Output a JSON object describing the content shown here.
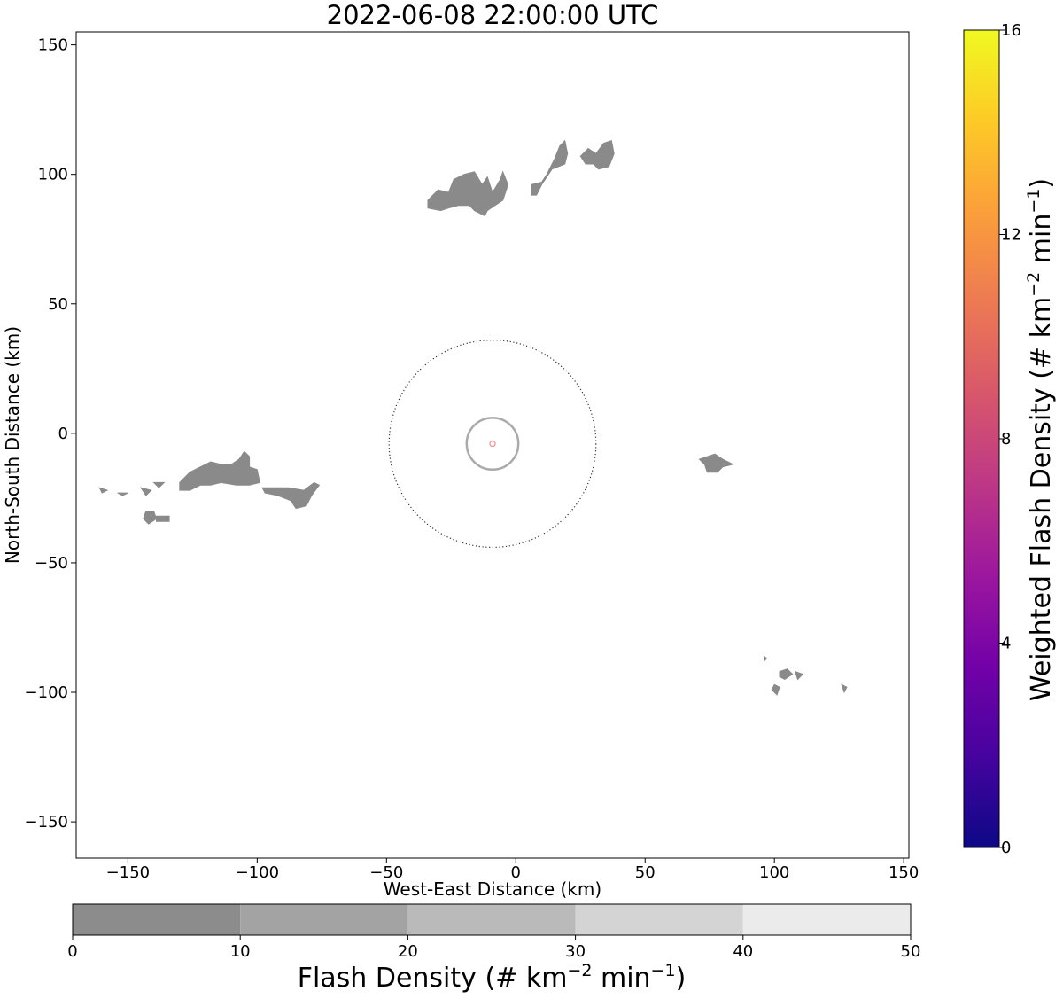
{
  "chart_data": {
    "type": "heatmap",
    "title": "2022-06-08 22:00:00 UTC",
    "xlabel": "West-East Distance (km)",
    "ylabel": "North-South Distance (km)",
    "xlim": [
      -170,
      152
    ],
    "ylim": [
      -164,
      155
    ],
    "xticks": [
      -150,
      -100,
      -50,
      0,
      50,
      100,
      150
    ],
    "xtick_labels": [
      "−150",
      "−100",
      "−50",
      "0",
      "50",
      "100",
      "150"
    ],
    "yticks": [
      150,
      100,
      50,
      0,
      -50,
      -100,
      -150
    ],
    "ytick_labels": [
      "150",
      "100",
      "50",
      "0",
      "−50",
      "−100",
      "−150"
    ],
    "grid": false,
    "field_color": "#8a8a8a",
    "center_marker": {
      "x": -9,
      "y": -4,
      "color": "#f4a0a0"
    },
    "range_rings": [
      {
        "center": [
          -9,
          -4
        ],
        "radius_km": 10,
        "style": "solid",
        "color": "#aaaaaa"
      },
      {
        "center": [
          -9,
          -4
        ],
        "radius_km": 40,
        "style": "dotted",
        "color": "#333333"
      }
    ],
    "flash_regions": [
      {
        "name": "north-cluster-a",
        "points": [
          [
            -34,
            90
          ],
          [
            -30,
            94
          ],
          [
            -26,
            93
          ],
          [
            -24,
            98
          ],
          [
            -20,
            100
          ],
          [
            -16,
            101
          ],
          [
            -13,
            96
          ],
          [
            -11,
            99
          ],
          [
            -9,
            93
          ],
          [
            -6,
            98
          ],
          [
            -5,
            101
          ],
          [
            -3,
            96
          ],
          [
            -5,
            90
          ],
          [
            -8,
            88
          ],
          [
            -11,
            86
          ],
          [
            -12,
            84
          ],
          [
            -16,
            86
          ],
          [
            -18,
            88
          ],
          [
            -22,
            88
          ],
          [
            -26,
            87
          ],
          [
            -29,
            86
          ],
          [
            -34,
            87
          ]
        ]
      },
      {
        "name": "north-cluster-b",
        "points": [
          [
            6,
            96
          ],
          [
            10,
            97
          ],
          [
            12,
            100
          ],
          [
            15,
            106
          ],
          [
            17,
            111
          ],
          [
            19,
            113
          ],
          [
            20,
            108
          ],
          [
            19,
            104
          ],
          [
            14,
            102
          ],
          [
            10,
            96
          ],
          [
            8,
            92
          ],
          [
            6,
            92
          ]
        ]
      },
      {
        "name": "north-cluster-c",
        "points": [
          [
            25,
            107
          ],
          [
            28,
            110
          ],
          [
            31,
            108
          ],
          [
            34,
            112
          ],
          [
            37,
            113
          ],
          [
            38,
            108
          ],
          [
            36,
            103
          ],
          [
            32,
            102
          ],
          [
            30,
            104
          ],
          [
            27,
            104
          ]
        ]
      },
      {
        "name": "west-cluster-main",
        "points": [
          [
            -130,
            -19
          ],
          [
            -126,
            -15
          ],
          [
            -122,
            -13
          ],
          [
            -118,
            -11
          ],
          [
            -114,
            -12
          ],
          [
            -110,
            -12
          ],
          [
            -107,
            -10
          ],
          [
            -105,
            -7
          ],
          [
            -103,
            -9
          ],
          [
            -103,
            -13
          ],
          [
            -100,
            -14
          ],
          [
            -99,
            -19
          ],
          [
            -103,
            -20
          ],
          [
            -108,
            -20
          ],
          [
            -114,
            -19
          ],
          [
            -118,
            -20
          ],
          [
            -122,
            -20
          ],
          [
            -126,
            -22
          ],
          [
            -130,
            -22
          ]
        ]
      },
      {
        "name": "west-cluster-tail",
        "points": [
          [
            -98,
            -21
          ],
          [
            -92,
            -21
          ],
          [
            -88,
            -21
          ],
          [
            -82,
            -22
          ],
          [
            -78,
            -19
          ],
          [
            -76,
            -20
          ],
          [
            -79,
            -24
          ],
          [
            -81,
            -28
          ],
          [
            -85,
            -29
          ],
          [
            -87,
            -26
          ],
          [
            -92,
            -24
          ],
          [
            -97,
            -23
          ]
        ]
      },
      {
        "name": "west-speck-1",
        "points": [
          [
            -143,
            -30
          ],
          [
            -140,
            -30
          ],
          [
            -139,
            -33
          ],
          [
            -142,
            -35
          ],
          [
            -144,
            -33
          ]
        ]
      },
      {
        "name": "west-speck-2",
        "points": [
          [
            -139,
            -32
          ],
          [
            -134,
            -32
          ],
          [
            -134,
            -34
          ],
          [
            -139,
            -34
          ]
        ]
      },
      {
        "name": "west-speck-3",
        "points": [
          [
            -161,
            -21
          ],
          [
            -158,
            -22
          ],
          [
            -160,
            -23
          ]
        ]
      },
      {
        "name": "west-speck-4",
        "points": [
          [
            -154,
            -23
          ],
          [
            -150,
            -23
          ],
          [
            -152,
            -24
          ]
        ]
      },
      {
        "name": "west-speck-5",
        "points": [
          [
            -145,
            -21
          ],
          [
            -141,
            -22
          ],
          [
            -143,
            -24
          ]
        ]
      },
      {
        "name": "west-speck-6",
        "points": [
          [
            -140,
            -19
          ],
          [
            -136,
            -19
          ],
          [
            -138,
            -21
          ]
        ]
      },
      {
        "name": "east-cluster",
        "points": [
          [
            71,
            -10
          ],
          [
            74,
            -9
          ],
          [
            77,
            -8
          ],
          [
            80,
            -10
          ],
          [
            84,
            -12
          ],
          [
            80,
            -13
          ],
          [
            78,
            -15
          ],
          [
            74,
            -15
          ],
          [
            73,
            -12
          ]
        ]
      },
      {
        "name": "southeast-speck-1",
        "points": [
          [
            96,
            -86
          ],
          [
            97,
            -87
          ],
          [
            96,
            -88
          ]
        ]
      },
      {
        "name": "southeast-speck-2",
        "points": [
          [
            102,
            -92
          ],
          [
            105,
            -91
          ],
          [
            107,
            -93
          ],
          [
            104,
            -95
          ],
          [
            102,
            -94
          ]
        ]
      },
      {
        "name": "southeast-speck-3",
        "points": [
          [
            100,
            -97
          ],
          [
            102,
            -98
          ],
          [
            101,
            -101
          ],
          [
            99,
            -99
          ]
        ]
      },
      {
        "name": "southeast-speck-4",
        "points": [
          [
            108,
            -92
          ],
          [
            111,
            -93
          ],
          [
            109,
            -95
          ]
        ]
      },
      {
        "name": "southeast-speck-5",
        "points": [
          [
            126,
            -97
          ],
          [
            128,
            -98
          ],
          [
            127,
            -100
          ]
        ]
      }
    ],
    "colorbars": [
      {
        "name": "weighted-flash-density",
        "label_main": "Weighted Flash Density (# km",
        "label_sup1": "−2",
        "label_mid": " min",
        "label_sup2": "−1",
        "label_end": ")",
        "range": [
          0,
          16
        ],
        "ticks": [
          0,
          4,
          8,
          12,
          16
        ],
        "tick_labels": [
          "0",
          "4",
          "8",
          "12",
          "16"
        ],
        "colormap": "plasma",
        "stops": [
          "#0d0887",
          "#46039f",
          "#7201a8",
          "#9c179e",
          "#bd3786",
          "#d8576b",
          "#ed7953",
          "#fb9f3a",
          "#fdca26",
          "#f0f921"
        ]
      },
      {
        "name": "flash-density",
        "label_main": "Flash Density (# km",
        "label_sup1": "−2",
        "label_mid": " min",
        "label_sup2": "−1",
        "label_end": ")",
        "range": [
          0,
          50
        ],
        "ticks": [
          0,
          10,
          20,
          30,
          40,
          50
        ],
        "tick_labels": [
          "0",
          "10",
          "20",
          "30",
          "40",
          "50"
        ],
        "bins": [
          {
            "from": 0,
            "to": 10,
            "color": "#8c8c8c"
          },
          {
            "from": 10,
            "to": 20,
            "color": "#a3a3a3"
          },
          {
            "from": 20,
            "to": 30,
            "color": "#bababa"
          },
          {
            "from": 30,
            "to": 40,
            "color": "#d4d4d4"
          },
          {
            "from": 40,
            "to": 50,
            "color": "#ebebeb"
          }
        ]
      }
    ]
  }
}
